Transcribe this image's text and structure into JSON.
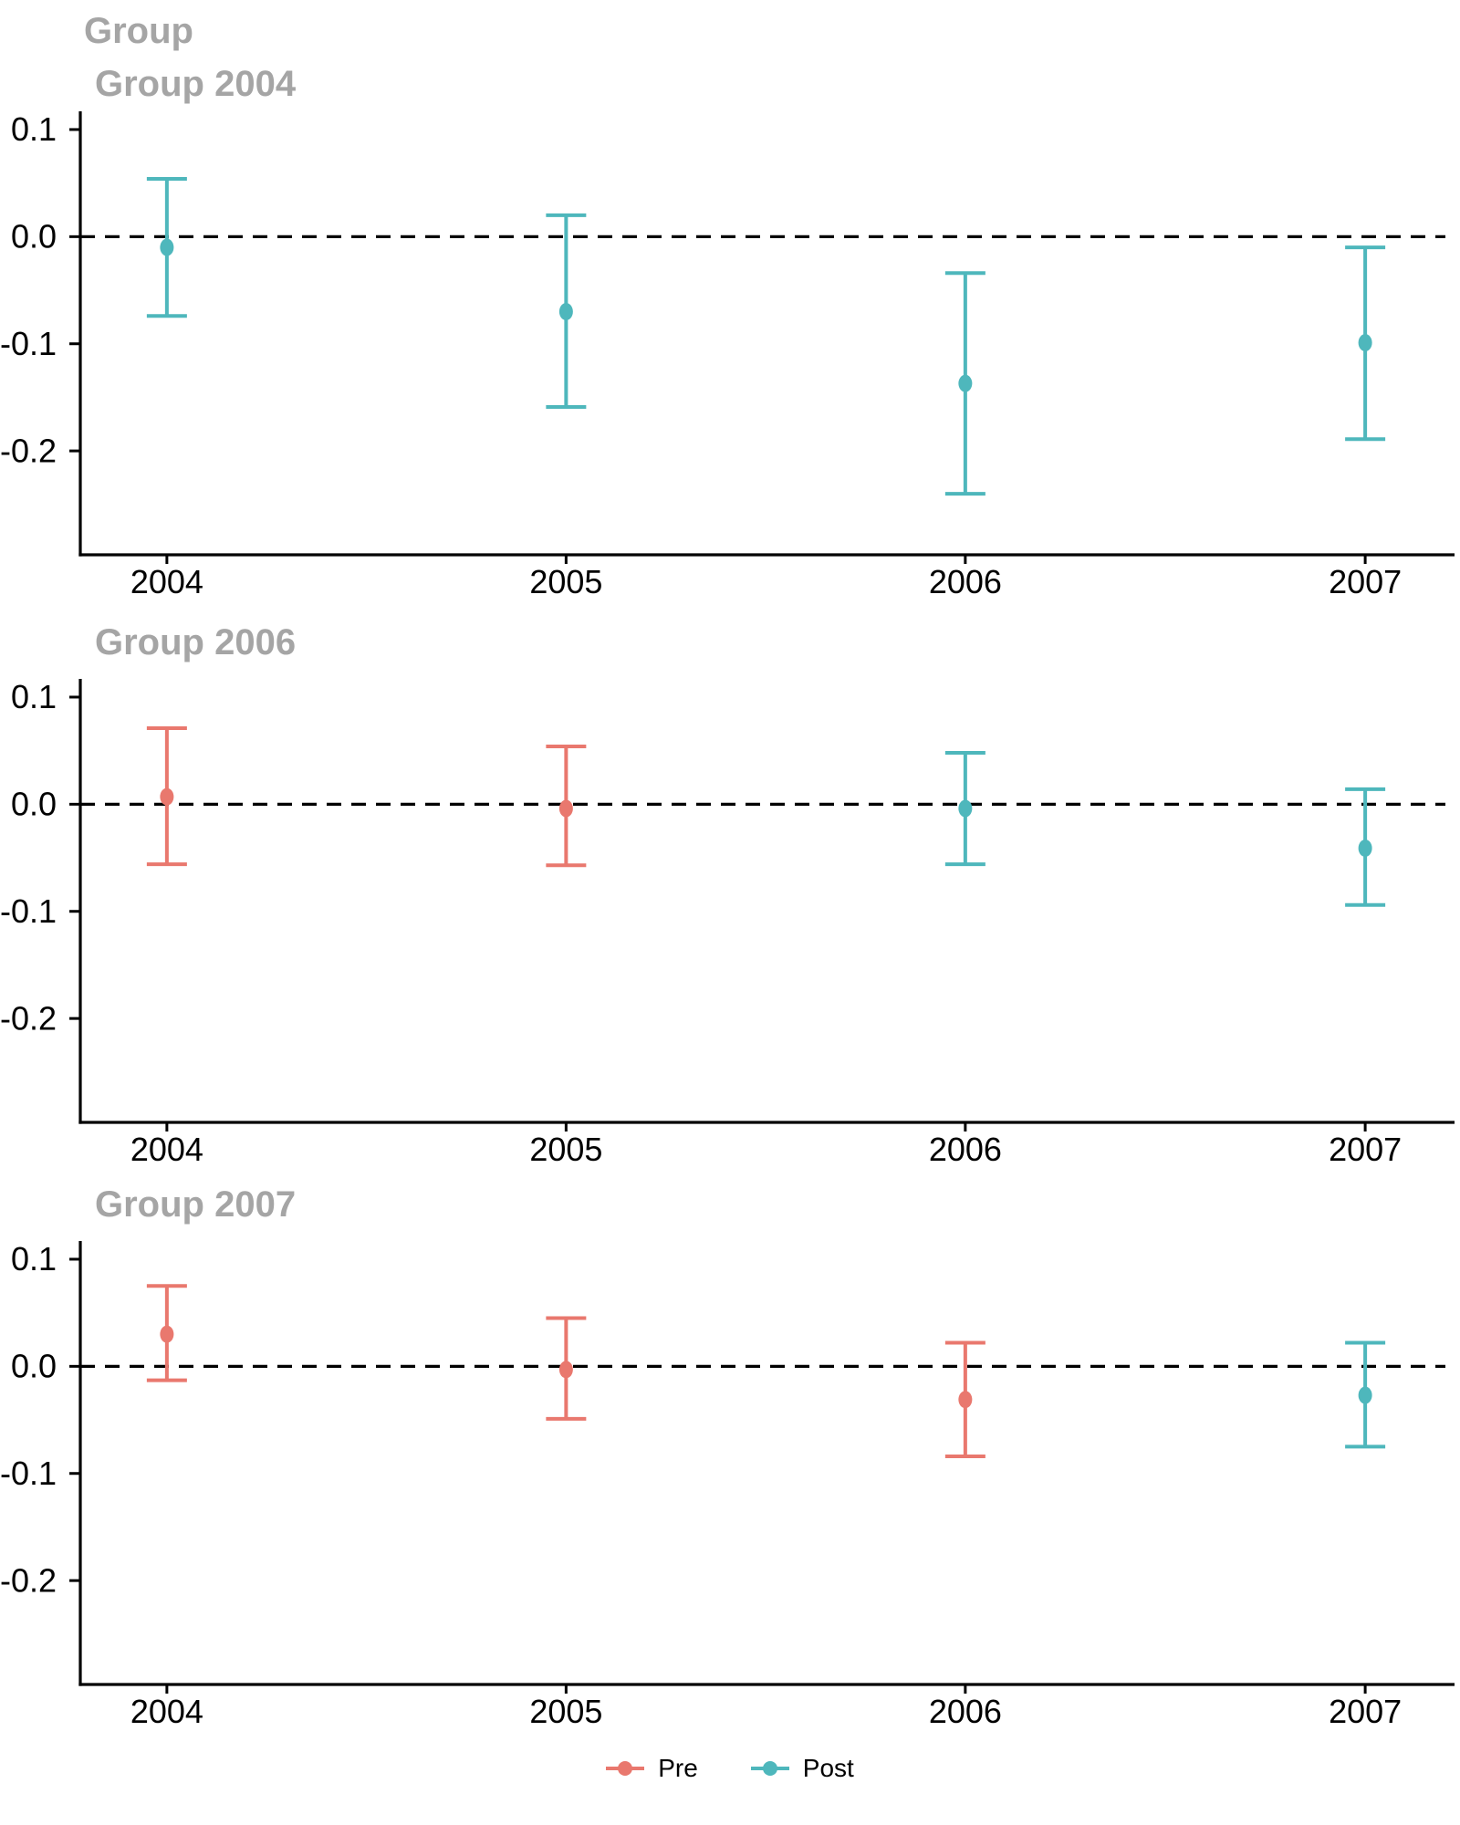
{
  "title": "Group",
  "colors": {
    "pre": "#E9786E",
    "post": "#4EB7BC",
    "title_gray": "#A5A5A5",
    "axis": "#000000",
    "background": "#FFFFFF"
  },
  "legend": {
    "items": [
      {
        "label": "Pre",
        "series": "pre"
      },
      {
        "label": "Post",
        "series": "post"
      }
    ]
  },
  "chart_data": {
    "type": "pointrange",
    "facet_label": "Group",
    "x_categories": [
      "2004",
      "2005",
      "2006",
      "2007"
    ],
    "y_tick_labels": [
      "0.1",
      "0.0",
      "-0.1",
      "-0.2"
    ],
    "y_ticks": [
      0.1,
      0.0,
      -0.1,
      -0.2
    ],
    "y_domain": [
      0.117,
      -0.297
    ],
    "zero_reference_line": 0,
    "grid": "off",
    "legend_position": "bottom",
    "panels": [
      {
        "title": "Group 2004",
        "points": [
          {
            "x": "2004",
            "phase": "post",
            "est": -0.01,
            "lo": -0.074,
            "hi": 0.054
          },
          {
            "x": "2005",
            "phase": "post",
            "est": -0.07,
            "lo": -0.159,
            "hi": 0.02
          },
          {
            "x": "2006",
            "phase": "post",
            "est": -0.137,
            "lo": -0.24,
            "hi": -0.034
          },
          {
            "x": "2007",
            "phase": "post",
            "est": -0.099,
            "lo": -0.189,
            "hi": -0.01
          }
        ]
      },
      {
        "title": "Group 2006",
        "points": [
          {
            "x": "2004",
            "phase": "pre",
            "est": 0.007,
            "lo": -0.056,
            "hi": 0.071
          },
          {
            "x": "2005",
            "phase": "pre",
            "est": -0.004,
            "lo": -0.057,
            "hi": 0.054
          },
          {
            "x": "2006",
            "phase": "post",
            "est": -0.004,
            "lo": -0.056,
            "hi": 0.048
          },
          {
            "x": "2007",
            "phase": "post",
            "est": -0.041,
            "lo": -0.094,
            "hi": 0.014
          }
        ]
      },
      {
        "title": "Group 2007",
        "points": [
          {
            "x": "2004",
            "phase": "pre",
            "est": 0.03,
            "lo": -0.013,
            "hi": 0.075
          },
          {
            "x": "2005",
            "phase": "pre",
            "est": -0.003,
            "lo": -0.049,
            "hi": 0.045
          },
          {
            "x": "2006",
            "phase": "pre",
            "est": -0.031,
            "lo": -0.084,
            "hi": 0.022
          },
          {
            "x": "2007",
            "phase": "post",
            "est": -0.027,
            "lo": -0.075,
            "hi": 0.022
          }
        ]
      }
    ]
  }
}
